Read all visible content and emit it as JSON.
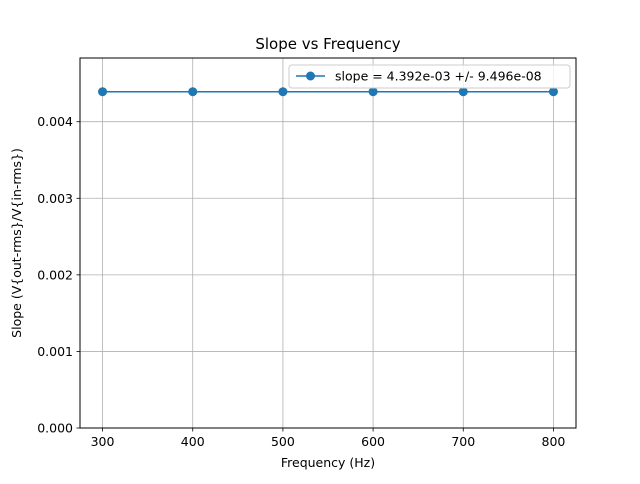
{
  "chart_data": {
    "type": "line",
    "title": "Slope vs Frequency",
    "xlabel": "Frequency (Hz)",
    "ylabel": "Slope (V{out-rms}/V{in-rms})",
    "x": [
      300,
      400,
      500,
      600,
      700,
      800
    ],
    "series": [
      {
        "name": "slope = 4.392e-03 +/- 9.496e-08",
        "values": [
          0.004392,
          0.004392,
          0.004392,
          0.004392,
          0.004392,
          0.004392
        ],
        "color": "#1f77b4",
        "marker": "circle"
      }
    ],
    "xticks": [
      300,
      400,
      500,
      600,
      700,
      800
    ],
    "xtick_labels": [
      "300",
      "400",
      "500",
      "600",
      "700",
      "800"
    ],
    "yticks": [
      0,
      0.001,
      0.002,
      0.003,
      0.004
    ],
    "ytick_labels": [
      "0.000",
      "0.001",
      "0.002",
      "0.003",
      "0.004"
    ],
    "xlim": [
      275,
      825
    ],
    "ylim": [
      0,
      0.004832
    ],
    "grid": true,
    "legend_position": "top-right"
  }
}
